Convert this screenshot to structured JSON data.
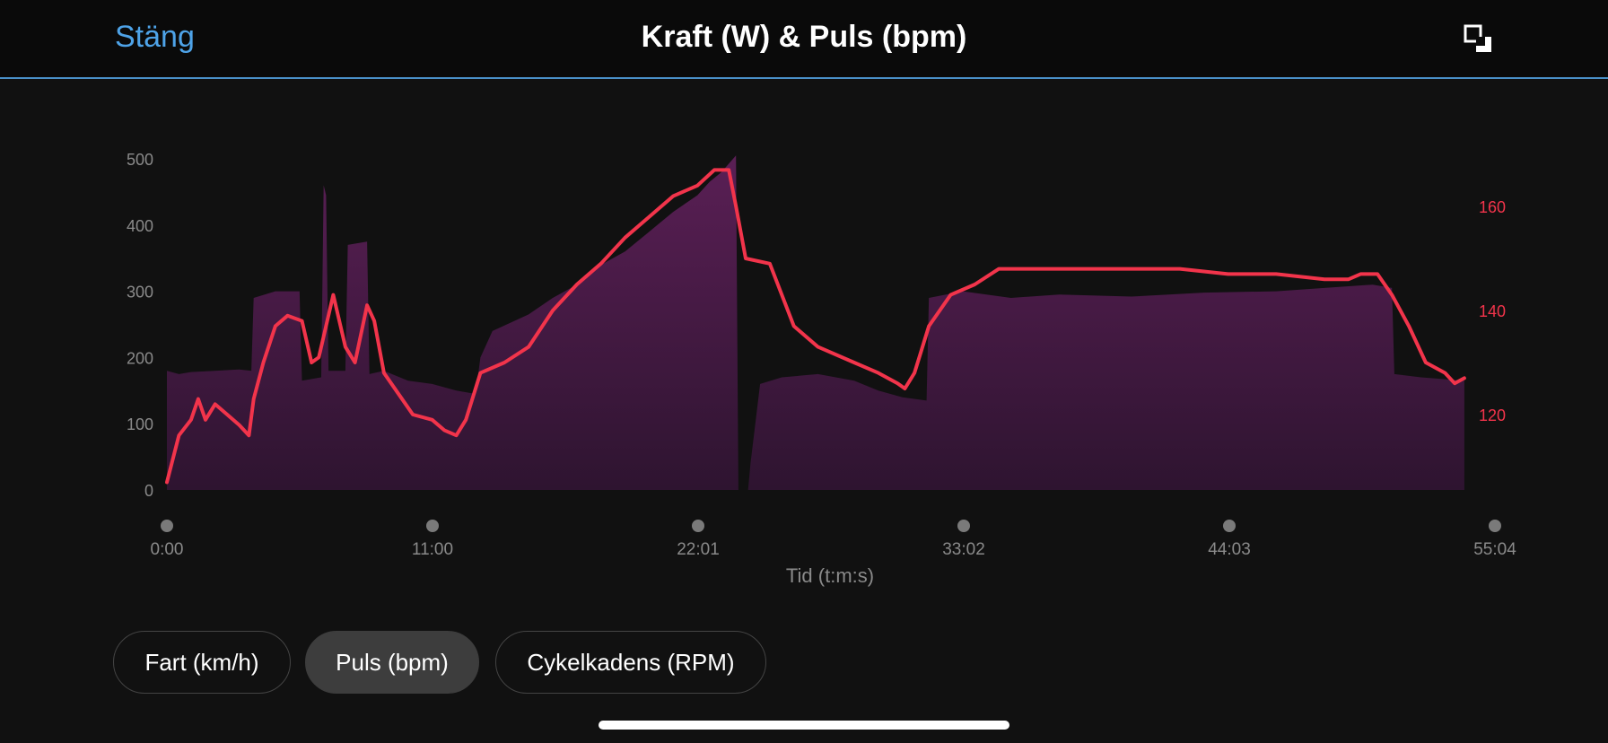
{
  "header": {
    "close_label": "Stäng",
    "title": "Kraft (W) & Puls (bpm)",
    "fullscreen_icon": "fullscreen-icon"
  },
  "tabs": [
    {
      "label": "Fart (km/h)",
      "active": false
    },
    {
      "label": "Puls (bpm)",
      "active": true
    },
    {
      "label": "Cykelkadens (RPM)",
      "active": false
    }
  ],
  "colors": {
    "background": "#111111",
    "power_fill_top": "#5a1f55",
    "power_fill_bottom": "#2e1430",
    "heart_rate_line": "#f2344b",
    "right_axis_text": "#f2344b",
    "accent": "#4ea3e8"
  },
  "chart_data": {
    "type": "area+line",
    "title": "Kraft (W) & Puls (bpm)",
    "xlabel": "Tid (t:m:s)",
    "x_ticks": [
      "0:00",
      "11:00",
      "22:01",
      "33:02",
      "44:03",
      "55:04"
    ],
    "x_range_min": [
      0,
      55.07
    ],
    "y_left_ticks": [
      "0",
      "100",
      "200",
      "300",
      "400",
      "500"
    ],
    "y_left_range": [
      0,
      500
    ],
    "y_right_ticks": [
      "120",
      "140",
      "160"
    ],
    "y_right_range": [
      104,
      168
    ],
    "series": [
      {
        "name": "Kraft (W)",
        "kind": "area",
        "axis": "left",
        "points": [
          [
            0,
            180
          ],
          [
            0.5,
            175
          ],
          [
            1,
            178
          ],
          [
            2,
            180
          ],
          [
            3,
            182
          ],
          [
            3.5,
            180
          ],
          [
            3.6,
            290
          ],
          [
            4.5,
            300
          ],
          [
            5.5,
            300
          ],
          [
            5.6,
            165
          ],
          [
            6.4,
            170
          ],
          [
            6.5,
            460
          ],
          [
            6.6,
            445
          ],
          [
            6.7,
            180
          ],
          [
            7.4,
            180
          ],
          [
            7.5,
            370
          ],
          [
            8.3,
            375
          ],
          [
            8.4,
            175
          ],
          [
            9,
            180
          ],
          [
            10,
            165
          ],
          [
            11,
            160
          ],
          [
            12,
            150
          ],
          [
            12.8,
            145
          ],
          [
            13,
            200
          ],
          [
            13.5,
            240
          ],
          [
            15,
            265
          ],
          [
            16,
            290
          ],
          [
            17,
            310
          ],
          [
            18,
            340
          ],
          [
            19,
            360
          ],
          [
            20,
            390
          ],
          [
            21,
            420
          ],
          [
            22,
            445
          ],
          [
            22.5,
            465
          ],
          [
            23,
            480
          ],
          [
            23.6,
            505
          ],
          [
            23.7,
            0
          ],
          [
            24.1,
            0
          ],
          [
            24.2,
            40
          ],
          [
            24.6,
            160
          ],
          [
            25.5,
            170
          ],
          [
            27,
            175
          ],
          [
            28.5,
            165
          ],
          [
            29.5,
            150
          ],
          [
            30.5,
            140
          ],
          [
            31.5,
            135
          ],
          [
            31.6,
            290
          ],
          [
            33,
            300
          ],
          [
            35,
            290
          ],
          [
            37,
            295
          ],
          [
            40,
            292
          ],
          [
            43,
            298
          ],
          [
            46,
            300
          ],
          [
            48,
            305
          ],
          [
            50,
            310
          ],
          [
            50.8,
            305
          ],
          [
            50.9,
            175
          ],
          [
            52,
            170
          ],
          [
            53.8,
            165
          ]
        ]
      },
      {
        "name": "Puls (bpm)",
        "kind": "line",
        "axis": "right",
        "points": [
          [
            0,
            107
          ],
          [
            0.5,
            116
          ],
          [
            1,
            119
          ],
          [
            1.3,
            123
          ],
          [
            1.6,
            119
          ],
          [
            2,
            122
          ],
          [
            2.5,
            120
          ],
          [
            3,
            118
          ],
          [
            3.4,
            116
          ],
          [
            3.6,
            123
          ],
          [
            4,
            130
          ],
          [
            4.5,
            137
          ],
          [
            5,
            139
          ],
          [
            5.6,
            138
          ],
          [
            6,
            130
          ],
          [
            6.3,
            131
          ],
          [
            6.9,
            143
          ],
          [
            7.4,
            133
          ],
          [
            7.8,
            130
          ],
          [
            8.3,
            141
          ],
          [
            8.6,
            138
          ],
          [
            9,
            128
          ],
          [
            9.6,
            124
          ],
          [
            10.2,
            120
          ],
          [
            11,
            119
          ],
          [
            11.5,
            117
          ],
          [
            12,
            116
          ],
          [
            12.4,
            119
          ],
          [
            13,
            128
          ],
          [
            14,
            130
          ],
          [
            15,
            133
          ],
          [
            16,
            140
          ],
          [
            17,
            145
          ],
          [
            18,
            149
          ],
          [
            19,
            154
          ],
          [
            20,
            158
          ],
          [
            21,
            162
          ],
          [
            22,
            164
          ],
          [
            22.7,
            167
          ],
          [
            23.3,
            167
          ],
          [
            23.6,
            160
          ],
          [
            24,
            150
          ],
          [
            25,
            149
          ],
          [
            26,
            137
          ],
          [
            27,
            133
          ],
          [
            28.5,
            130
          ],
          [
            29.5,
            128
          ],
          [
            30.3,
            126
          ],
          [
            30.6,
            125
          ],
          [
            31,
            128
          ],
          [
            31.6,
            137
          ],
          [
            32.5,
            143
          ],
          [
            33.5,
            145
          ],
          [
            34.5,
            148
          ],
          [
            36,
            148
          ],
          [
            38,
            148
          ],
          [
            40,
            148
          ],
          [
            42,
            148
          ],
          [
            44,
            147
          ],
          [
            46,
            147
          ],
          [
            48,
            146
          ],
          [
            49,
            146
          ],
          [
            49.5,
            147
          ],
          [
            50.2,
            147
          ],
          [
            50.8,
            143
          ],
          [
            51.5,
            137
          ],
          [
            52.2,
            130
          ],
          [
            53,
            128
          ],
          [
            53.4,
            126
          ],
          [
            53.8,
            127
          ]
        ]
      }
    ],
    "grid": false,
    "legend": "none"
  }
}
